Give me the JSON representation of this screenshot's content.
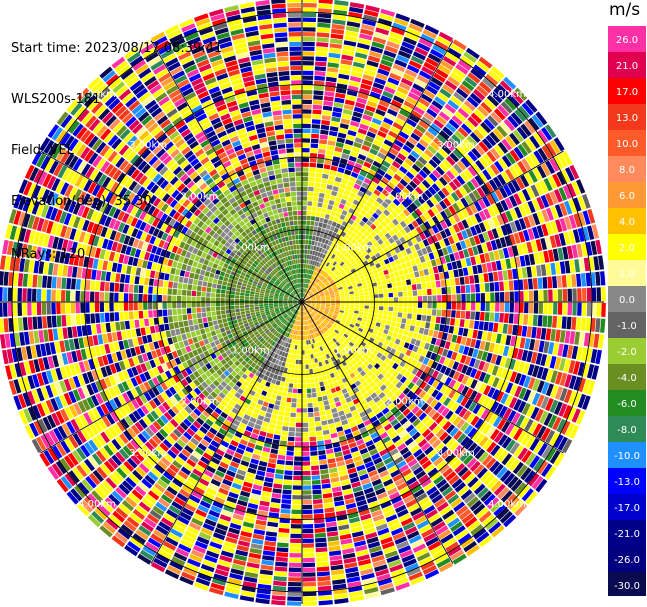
{
  "info": {
    "start_time": "Start time: 2023/08/17 08:39:41",
    "instrument": "WLS200s-181",
    "field": "Field: VEL",
    "elevation": "Elevation(deg): 35.30",
    "nrays": "NRays: 120"
  },
  "colorbar": {
    "unit": "m/s",
    "ticks": [
      "26.0",
      "21.0",
      "17.0",
      "13.0",
      "10.0",
      "8.0",
      "6.0",
      "4.0",
      "2.0",
      "1.0",
      "0.0",
      "-1.0",
      "-2.0",
      "-4.0",
      "-6.0",
      "-8.0",
      "-10.0",
      "-13.0",
      "-17.0",
      "-21.0",
      "-26.0",
      "-30.0"
    ],
    "colors": [
      "#ff2fa6",
      "#e0004f",
      "#ff0000",
      "#f3381b",
      "#ff5a2a",
      "#ff8a5c",
      "#ff9933",
      "#ffc000",
      "#ffff00",
      "#fffb99",
      "#888888",
      "#636363",
      "#9acd32",
      "#6b8e23",
      "#228b22",
      "#2e8b57",
      "#1e90ff",
      "#0000ff",
      "#0000cd",
      "#00008b",
      "#000080",
      "#0a0a50"
    ]
  },
  "chart_data": {
    "type": "heatmap",
    "projection": "PPI polar",
    "field": "VEL",
    "units": "m/s",
    "n_rays": 120,
    "elevation_deg": 35.3,
    "range_rings_km": [
      1.0,
      2.0,
      3.0,
      4.0
    ],
    "ring_labels": [
      "1.00km",
      "2.00km",
      "3.00km",
      "4.00km"
    ],
    "color_scale_levels": [
      -30.0,
      -26.0,
      -21.0,
      -17.0,
      -13.0,
      -10.0,
      -8.0,
      -6.0,
      -4.0,
      -2.0,
      -1.0,
      0.0,
      1.0,
      2.0,
      4.0,
      6.0,
      8.0,
      10.0,
      13.0,
      17.0,
      21.0,
      26.0
    ],
    "zones": [
      {
        "range_km": [
          0.0,
          0.6
        ],
        "dominant": "mixed: -6 to 4 m/s (green/orange)"
      },
      {
        "range_km": [
          0.6,
          1.4
        ],
        "dominant": "-4 m/s (olive) upwind, 2 m/s (yellow) downwind"
      },
      {
        "range_km": [
          1.4,
          2.2
        ],
        "dominant": "2 m/s yellow ring with grey 0 m/s band"
      },
      {
        "range_km": [
          2.2,
          4.6
        ],
        "dominant": "noise: all classes"
      }
    ]
  }
}
